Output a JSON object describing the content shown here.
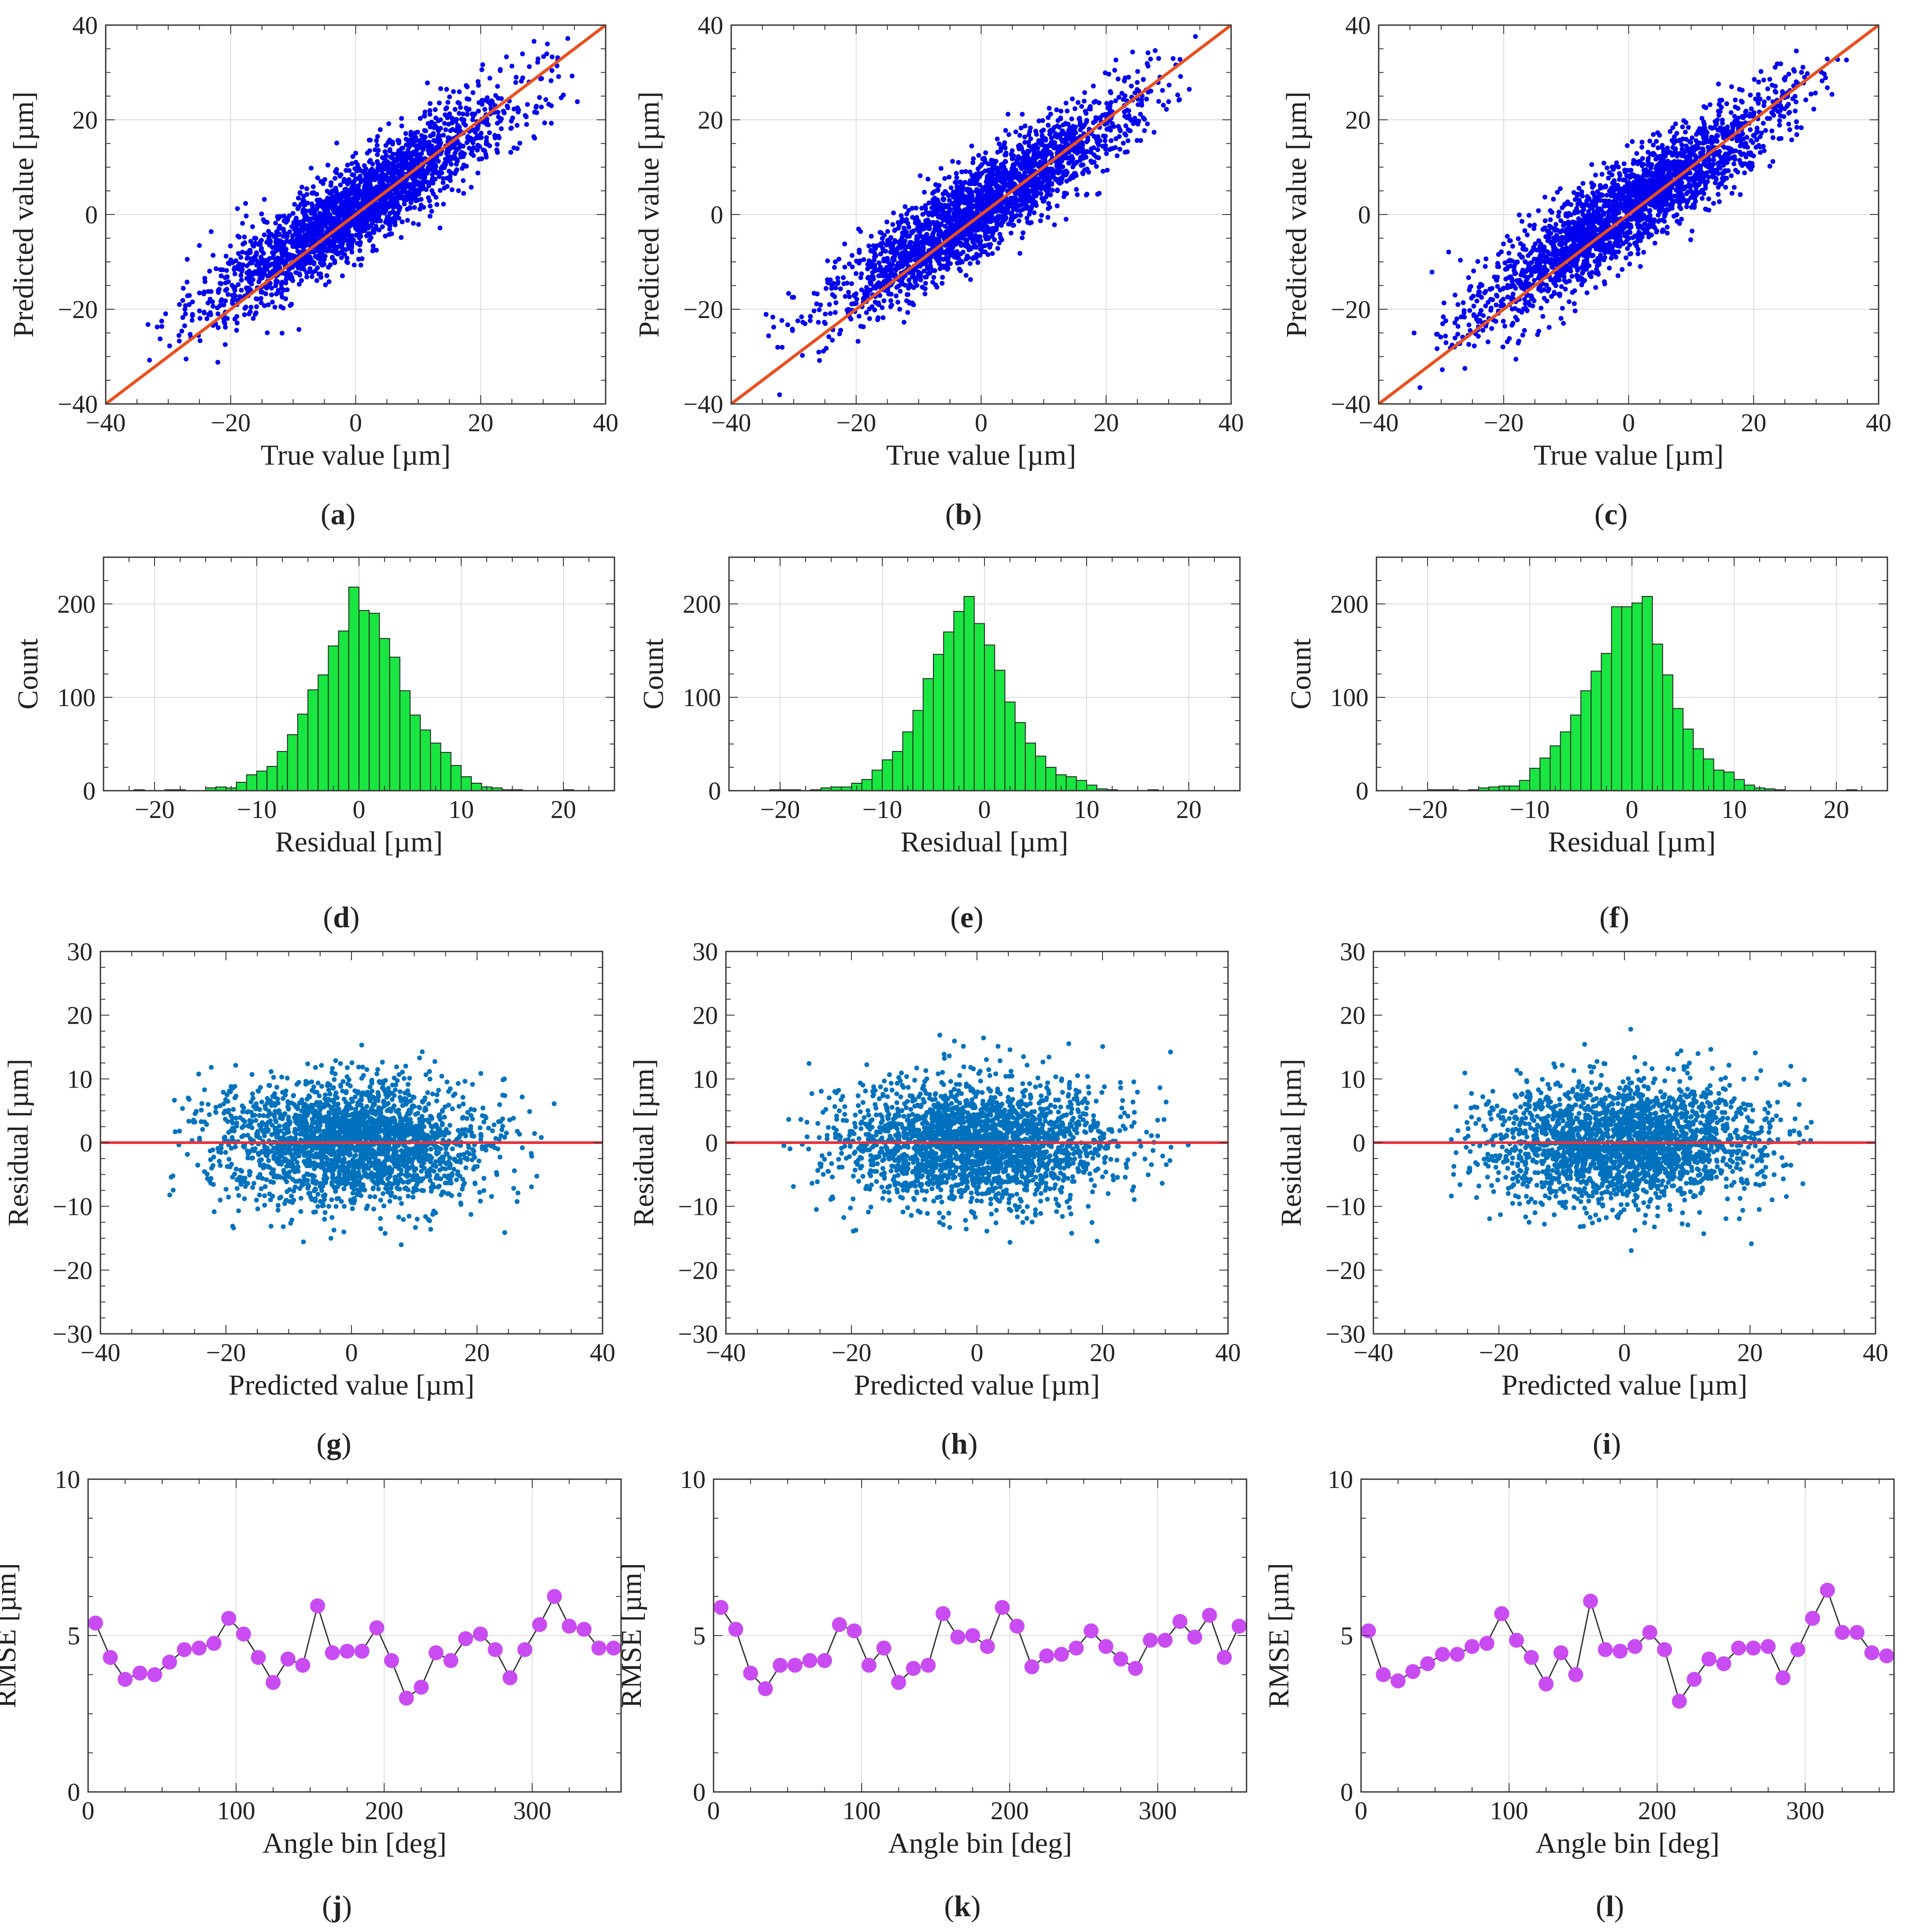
{
  "figure": {
    "panels": [
      {
        "id": "a",
        "label": "a",
        "row": 0,
        "col": 0
      },
      {
        "id": "b",
        "label": "b",
        "row": 0,
        "col": 1
      },
      {
        "id": "c",
        "label": "c",
        "row": 0,
        "col": 2
      },
      {
        "id": "d",
        "label": "d",
        "row": 1,
        "col": 0
      },
      {
        "id": "e",
        "label": "e",
        "row": 1,
        "col": 1
      },
      {
        "id": "f",
        "label": "f",
        "row": 1,
        "col": 2
      },
      {
        "id": "g",
        "label": "g",
        "row": 2,
        "col": 0
      },
      {
        "id": "h",
        "label": "h",
        "row": 2,
        "col": 1
      },
      {
        "id": "i",
        "label": "i",
        "row": 2,
        "col": 2
      },
      {
        "id": "j",
        "label": "j",
        "row": 3,
        "col": 0
      },
      {
        "id": "k",
        "label": "k",
        "row": 3,
        "col": 1
      },
      {
        "id": "l",
        "label": "l",
        "row": 3,
        "col": 2
      }
    ]
  },
  "chart_data": [
    {
      "panel": "a",
      "type": "scatter",
      "xlabel": "True value [µm]",
      "ylabel": "Predicted value [µm]",
      "xlim": [
        -40,
        40
      ],
      "ylim": [
        -40,
        40
      ],
      "xticks": [
        -40,
        -20,
        0,
        20,
        40
      ],
      "yticks": [
        -40,
        -20,
        0,
        20,
        40
      ],
      "grid": true,
      "point_color": "#0000ee",
      "identity_line": {
        "from": [
          -40,
          -40
        ],
        "to": [
          40,
          40
        ],
        "color": "#e8501f"
      },
      "approx_points": 2400,
      "x_range": [
        -34,
        36
      ],
      "fit_slope": 0.85,
      "residual_sd": 4.8
    },
    {
      "panel": "b",
      "type": "scatter",
      "xlabel": "True value [µm]",
      "ylabel": "Predicted value [µm]",
      "xlim": [
        -40,
        40
      ],
      "ylim": [
        -40,
        40
      ],
      "xticks": [
        -40,
        -20,
        0,
        20,
        40
      ],
      "yticks": [
        -40,
        -20,
        0,
        20,
        40
      ],
      "grid": true,
      "point_color": "#0000ee",
      "identity_line": {
        "from": [
          -40,
          -40
        ],
        "to": [
          40,
          40
        ],
        "color": "#e8501f"
      },
      "approx_points": 2400,
      "x_range": [
        -35,
        36
      ],
      "fit_slope": 0.85,
      "residual_sd": 4.8
    },
    {
      "panel": "c",
      "type": "scatter",
      "xlabel": "True value [µm]",
      "ylabel": "Predicted value [µm]",
      "xlim": [
        -40,
        40
      ],
      "ylim": [
        -40,
        40
      ],
      "xticks": [
        -40,
        -20,
        0,
        20,
        40
      ],
      "yticks": [
        -40,
        -20,
        0,
        20,
        40
      ],
      "grid": true,
      "point_color": "#0000ee",
      "identity_line": {
        "from": [
          -40,
          -40
        ],
        "to": [
          40,
          40
        ],
        "color": "#e8501f"
      },
      "approx_points": 2400,
      "x_range": [
        -35,
        36
      ],
      "fit_slope": 0.85,
      "residual_sd": 4.8
    },
    {
      "panel": "d",
      "type": "bar",
      "xlabel": "Residual [µm]",
      "ylabel": "Count",
      "xlim": [
        -25,
        25
      ],
      "ylim": [
        0,
        250
      ],
      "xticks": [
        -20,
        -10,
        0,
        10,
        20
      ],
      "yticks": [
        0,
        100,
        200
      ],
      "grid": true,
      "bar_color": "#19e640",
      "bin_width": 1,
      "bin_start": -22,
      "values": [
        1,
        0,
        0,
        1,
        1,
        0,
        0,
        3,
        4,
        3,
        9,
        17,
        21,
        26,
        42,
        60,
        82,
        108,
        124,
        155,
        171,
        218,
        193,
        190,
        163,
        143,
        107,
        81,
        65,
        51,
        41,
        27,
        15,
        8,
        4,
        3,
        1,
        1,
        0,
        0,
        0,
        0,
        1,
        0
      ]
    },
    {
      "panel": "e",
      "type": "bar",
      "xlabel": "Residual [µm]",
      "ylabel": "Count",
      "xlim": [
        -25,
        25
      ],
      "ylim": [
        0,
        250
      ],
      "xticks": [
        -20,
        -10,
        0,
        10,
        20
      ],
      "yticks": [
        0,
        100,
        200
      ],
      "grid": true,
      "bar_color": "#19e640",
      "bin_width": 1,
      "bin_start": -21,
      "values": [
        1,
        1,
        1,
        0,
        1,
        3,
        4,
        4,
        8,
        12,
        22,
        33,
        42,
        63,
        86,
        120,
        146,
        170,
        192,
        208,
        179,
        156,
        129,
        95,
        73,
        51,
        37,
        25,
        17,
        15,
        11,
        6,
        2,
        1,
        0,
        0,
        0,
        1,
        0,
        0,
        0
      ]
    },
    {
      "panel": "f",
      "type": "bar",
      "xlabel": "Residual [µm]",
      "ylabel": "Count",
      "xlim": [
        -25,
        25
      ],
      "ylim": [
        0,
        250
      ],
      "xticks": [
        -20,
        -10,
        0,
        10,
        20
      ],
      "yticks": [
        0,
        100,
        200
      ],
      "grid": true,
      "bar_color": "#19e640",
      "bin_width": 1,
      "bin_start": -20,
      "values": [
        1,
        1,
        1,
        0,
        1,
        3,
        4,
        5,
        5,
        11,
        24,
        35,
        48,
        63,
        81,
        107,
        128,
        147,
        197,
        197,
        201,
        208,
        157,
        124,
        88,
        66,
        45,
        34,
        22,
        20,
        12,
        6,
        3,
        2,
        1,
        0,
        0,
        0,
        0,
        0,
        0,
        1,
        0
      ]
    },
    {
      "panel": "g",
      "type": "scatter",
      "xlabel": "Predicted value [µm]",
      "ylabel": "Residual [µm]",
      "xlim": [
        -40,
        40
      ],
      "ylim": [
        -30,
        30
      ],
      "xticks": [
        -40,
        -20,
        0,
        20,
        40
      ],
      "yticks": [
        -30,
        -20,
        -10,
        0,
        10,
        20,
        30
      ],
      "grid": false,
      "point_color": "#0072bd",
      "zero_line": {
        "y": 0,
        "color": "#e8323b"
      },
      "approx_points": 2400,
      "x_range": [
        -29,
        34
      ],
      "residual_sd": 4.8
    },
    {
      "panel": "h",
      "type": "scatter",
      "xlabel": "Predicted value [µm]",
      "ylabel": "Residual [µm]",
      "xlim": [
        -40,
        40
      ],
      "ylim": [
        -30,
        30
      ],
      "xticks": [
        -40,
        -20,
        0,
        20,
        40
      ],
      "yticks": [
        -30,
        -20,
        -10,
        0,
        10,
        20,
        30
      ],
      "grid": false,
      "point_color": "#0072bd",
      "zero_line": {
        "y": 0,
        "color": "#e8323b"
      },
      "approx_points": 2400,
      "x_range": [
        -31,
        34
      ],
      "residual_sd": 4.8
    },
    {
      "panel": "i",
      "type": "scatter",
      "xlabel": "Predicted value [µm]",
      "ylabel": "Residual [µm]",
      "xlim": [
        -40,
        40
      ],
      "ylim": [
        -30,
        30
      ],
      "xticks": [
        -40,
        -20,
        0,
        20,
        40
      ],
      "yticks": [
        -30,
        -20,
        -10,
        0,
        10,
        20,
        30
      ],
      "grid": false,
      "point_color": "#0072bd",
      "zero_line": {
        "y": 0,
        "color": "#e8323b"
      },
      "approx_points": 2400,
      "x_range": [
        -28,
        30
      ],
      "residual_sd": 4.8
    },
    {
      "panel": "j",
      "type": "line",
      "xlabel": "Angle bin [deg]",
      "ylabel": "RMSE [µm]",
      "xlim": [
        0,
        360
      ],
      "ylim": [
        0,
        10
      ],
      "xticks": [
        0,
        100,
        200,
        300
      ],
      "yticks": [
        0,
        5,
        10
      ],
      "grid": true,
      "marker_color": "#c94cf2",
      "line_color": "#333333",
      "x": [
        5,
        15,
        25,
        35,
        45,
        55,
        65,
        75,
        85,
        95,
        105,
        115,
        125,
        135,
        145,
        155,
        165,
        175,
        185,
        195,
        205,
        215,
        225,
        235,
        245,
        255,
        265,
        275,
        285,
        295,
        305,
        315,
        325,
        335,
        345,
        355
      ],
      "values": [
        5.4,
        4.3,
        3.6,
        3.8,
        3.75,
        4.15,
        4.55,
        4.6,
        4.75,
        5.55,
        5.05,
        4.3,
        3.5,
        4.25,
        4.05,
        5.95,
        4.45,
        4.5,
        4.5,
        5.25,
        4.2,
        3.0,
        3.35,
        4.45,
        4.2,
        4.9,
        5.05,
        4.55,
        3.65,
        4.55,
        5.35,
        6.25,
        5.3,
        5.2,
        4.6,
        4.6
      ]
    },
    {
      "panel": "k",
      "type": "line",
      "xlabel": "Angle bin [deg]",
      "ylabel": "RMSE [µm]",
      "xlim": [
        0,
        360
      ],
      "ylim": [
        0,
        10
      ],
      "xticks": [
        0,
        100,
        200,
        300
      ],
      "yticks": [
        0,
        5,
        10
      ],
      "grid": true,
      "marker_color": "#c94cf2",
      "line_color": "#333333",
      "x": [
        5,
        15,
        25,
        35,
        45,
        55,
        65,
        75,
        85,
        95,
        105,
        115,
        125,
        135,
        145,
        155,
        165,
        175,
        185,
        195,
        205,
        215,
        225,
        235,
        245,
        255,
        265,
        275,
        285,
        295,
        305,
        315,
        325,
        335,
        345,
        355
      ],
      "values": [
        5.9,
        5.2,
        3.8,
        3.3,
        4.05,
        4.05,
        4.2,
        4.2,
        5.35,
        5.15,
        4.05,
        4.6,
        3.5,
        3.95,
        4.05,
        5.7,
        4.95,
        5.0,
        4.65,
        5.9,
        5.3,
        4.0,
        4.35,
        4.4,
        4.6,
        5.15,
        4.65,
        4.25,
        3.95,
        4.85,
        4.85,
        5.45,
        4.95,
        5.65,
        4.3,
        5.3
      ]
    },
    {
      "panel": "l",
      "type": "line",
      "xlabel": "Angle bin [deg]",
      "ylabel": "RMSE [µm]",
      "xlim": [
        0,
        360
      ],
      "ylim": [
        0,
        10
      ],
      "xticks": [
        0,
        100,
        200,
        300
      ],
      "yticks": [
        0,
        5,
        10
      ],
      "grid": true,
      "marker_color": "#c94cf2",
      "line_color": "#333333",
      "x": [
        5,
        15,
        25,
        35,
        45,
        55,
        65,
        75,
        85,
        95,
        105,
        115,
        125,
        135,
        145,
        155,
        165,
        175,
        185,
        195,
        205,
        215,
        225,
        235,
        245,
        255,
        265,
        275,
        285,
        295,
        305,
        315,
        325,
        335,
        345,
        355
      ],
      "values": [
        5.15,
        3.75,
        3.55,
        3.85,
        4.1,
        4.4,
        4.4,
        4.65,
        4.75,
        5.7,
        4.85,
        4.3,
        3.45,
        4.45,
        3.75,
        6.1,
        4.55,
        4.5,
        4.65,
        5.1,
        4.55,
        2.9,
        3.6,
        4.25,
        4.1,
        4.6,
        4.6,
        4.65,
        3.65,
        4.55,
        5.55,
        6.45,
        5.1,
        5.1,
        4.45,
        4.35
      ]
    }
  ]
}
